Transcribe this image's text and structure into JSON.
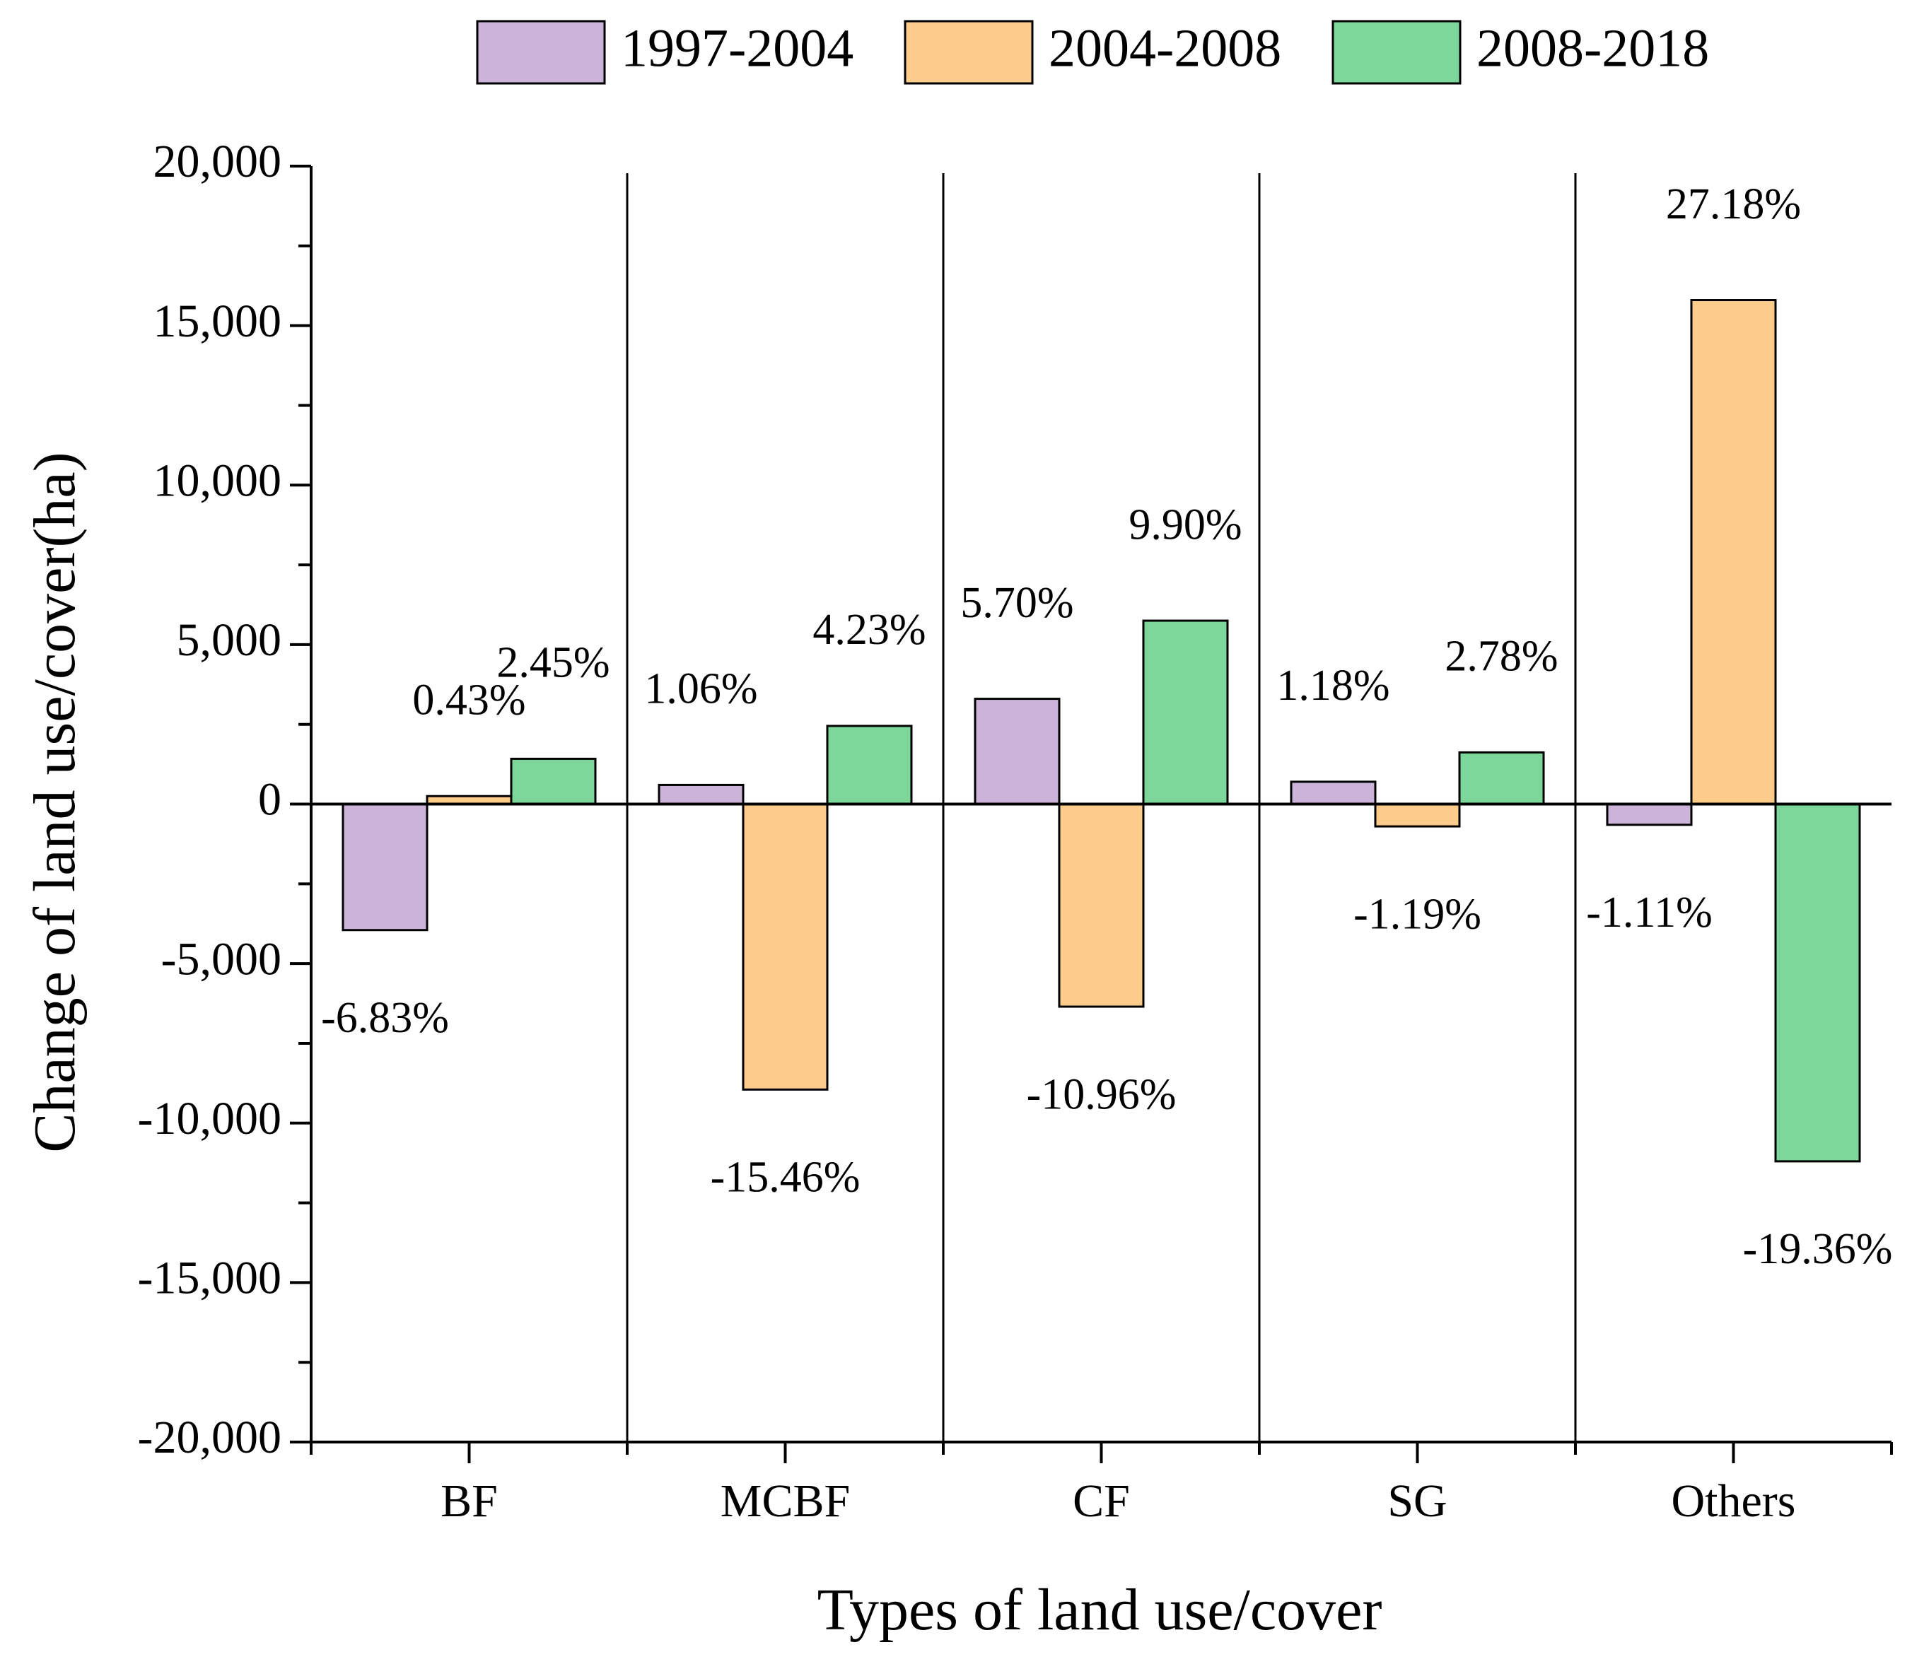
{
  "chart_data": {
    "type": "bar",
    "title": "",
    "xlabel": "Types of land use/cover",
    "ylabel": "Change of land use/cover(ha)",
    "ylim": [
      -20000,
      20000
    ],
    "yticks": [
      20000,
      15000,
      10000,
      5000,
      0,
      -5000,
      -10000,
      -15000,
      -20000
    ],
    "ytick_labels": [
      "20,000",
      "15,000",
      "10,000",
      "5,000",
      "0",
      "-5,000",
      "-10,000",
      "-15,000",
      "-20,000"
    ],
    "grid": false,
    "legend_position": "top",
    "categories": [
      "BF",
      "MCBF",
      "CF",
      "SG",
      "Others"
    ],
    "series": [
      {
        "name": "1997-2004",
        "color": "#cbb3d9",
        "values": [
          -3950,
          600,
          3300,
          700,
          -650
        ],
        "labels": [
          "-6.83%",
          "1.06%",
          "5.70%",
          "1.18%",
          "-1.11%"
        ]
      },
      {
        "name": "2004-2008",
        "color": "#fdcb8a",
        "values": [
          250,
          -8950,
          -6350,
          -700,
          15800
        ],
        "labels": [
          "0.43%",
          "-15.46%",
          "-10.96%",
          "-1.19%",
          "27.18%"
        ]
      },
      {
        "name": "2008-2018",
        "color": "#7dd79a",
        "values": [
          1420,
          2450,
          5750,
          1620,
          -11200
        ],
        "labels": [
          "2.45%",
          "4.23%",
          "9.90%",
          "2.78%",
          "-19.36%"
        ]
      }
    ]
  }
}
